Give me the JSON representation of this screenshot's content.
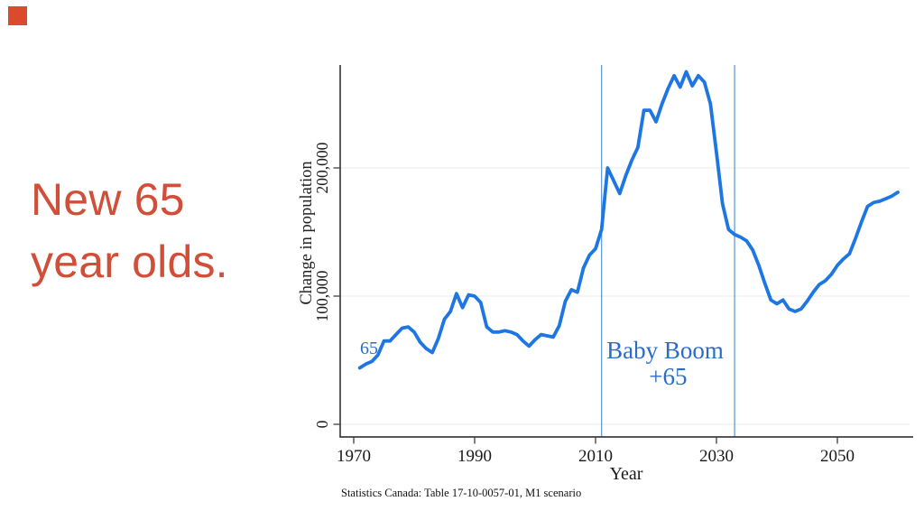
{
  "page": {
    "background": "#ffffff",
    "accent_square_color": "#dc4a2e"
  },
  "title": {
    "line1": "New 65",
    "line2": "year olds.",
    "color": "#d14f39"
  },
  "chart_data": {
    "type": "line",
    "title": "",
    "xlabel": "Year",
    "ylabel": "Change in population",
    "x_ticks": [
      1970,
      1990,
      2010,
      2030,
      2050
    ],
    "y_ticks": [
      0,
      100000,
      200000
    ],
    "y_tick_labels": [
      "0",
      "100,000",
      "200,000"
    ],
    "xlim": [
      1967.8,
      2062
    ],
    "ylim": [
      0,
      280000
    ],
    "grid": "horizontal",
    "legend": "none",
    "line_color": "#1d76e2",
    "vline_color": "#5894d2",
    "annotation_color": "#2a6cc8",
    "vlines": [
      2011,
      2033
    ],
    "annotations": [
      {
        "id": "baby-boom-window",
        "lines": [
          "Baby Boom",
          "+65"
        ]
      },
      {
        "id": "series-start-label",
        "lines": [
          "65"
        ]
      }
    ],
    "source_note": "Statistics Canada: Table 17-10-0057-01, M1 scenario",
    "series": [
      {
        "name": "New 65 year olds",
        "points": [
          [
            1971,
            44000
          ],
          [
            1972,
            47000
          ],
          [
            1973,
            49000
          ],
          [
            1974,
            54000
          ],
          [
            1975,
            65000
          ],
          [
            1976,
            65000
          ],
          [
            1977,
            70000
          ],
          [
            1978,
            75000
          ],
          [
            1979,
            76000
          ],
          [
            1980,
            72000
          ],
          [
            1981,
            64000
          ],
          [
            1982,
            59000
          ],
          [
            1983,
            56000
          ],
          [
            1984,
            67000
          ],
          [
            1985,
            82000
          ],
          [
            1986,
            88000
          ],
          [
            1987,
            102000
          ],
          [
            1988,
            91000
          ],
          [
            1989,
            101000
          ],
          [
            1990,
            100000
          ],
          [
            1991,
            95000
          ],
          [
            1992,
            76000
          ],
          [
            1993,
            72000
          ],
          [
            1994,
            72000
          ],
          [
            1995,
            73000
          ],
          [
            1996,
            72000
          ],
          [
            1997,
            70000
          ],
          [
            1998,
            65000
          ],
          [
            1999,
            61000
          ],
          [
            2000,
            66000
          ],
          [
            2001,
            70000
          ],
          [
            2002,
            69000
          ],
          [
            2003,
            68000
          ],
          [
            2004,
            77000
          ],
          [
            2005,
            96000
          ],
          [
            2006,
            105000
          ],
          [
            2007,
            103000
          ],
          [
            2008,
            122000
          ],
          [
            2009,
            132000
          ],
          [
            2010,
            137000
          ],
          [
            2011,
            152000
          ],
          [
            2012,
            200000
          ],
          [
            2013,
            190000
          ],
          [
            2014,
            180000
          ],
          [
            2015,
            194000
          ],
          [
            2016,
            206000
          ],
          [
            2017,
            216000
          ],
          [
            2018,
            245000
          ],
          [
            2019,
            245000
          ],
          [
            2020,
            236000
          ],
          [
            2021,
            250000
          ],
          [
            2022,
            262000
          ],
          [
            2023,
            272000
          ],
          [
            2024,
            263000
          ],
          [
            2025,
            275000
          ],
          [
            2026,
            264000
          ],
          [
            2027,
            272000
          ],
          [
            2028,
            267000
          ],
          [
            2029,
            250000
          ],
          [
            2030,
            212000
          ],
          [
            2031,
            172000
          ],
          [
            2032,
            152000
          ],
          [
            2033,
            148000
          ],
          [
            2034,
            146000
          ],
          [
            2035,
            143000
          ],
          [
            2036,
            136000
          ],
          [
            2037,
            124000
          ],
          [
            2038,
            110000
          ],
          [
            2039,
            97000
          ],
          [
            2040,
            94000
          ],
          [
            2041,
            97000
          ],
          [
            2042,
            90000
          ],
          [
            2043,
            88000
          ],
          [
            2044,
            90000
          ],
          [
            2045,
            96000
          ],
          [
            2046,
            103000
          ],
          [
            2047,
            109000
          ],
          [
            2048,
            112000
          ],
          [
            2049,
            117000
          ],
          [
            2050,
            124000
          ],
          [
            2051,
            129000
          ],
          [
            2052,
            133000
          ],
          [
            2053,
            145000
          ],
          [
            2054,
            158000
          ],
          [
            2055,
            170000
          ],
          [
            2056,
            173000
          ],
          [
            2057,
            174000
          ],
          [
            2058,
            176000
          ],
          [
            2059,
            178000
          ],
          [
            2060,
            181000
          ]
        ]
      }
    ]
  }
}
